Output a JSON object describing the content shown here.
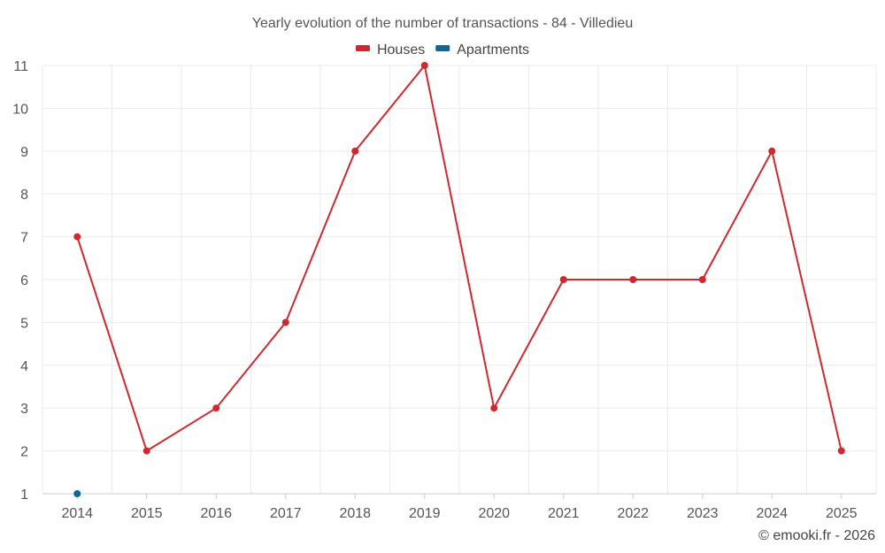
{
  "chart_data": {
    "type": "line",
    "title": "Yearly evolution of the number of transactions - 84 - Villedieu",
    "xlabel": "",
    "ylabel": "",
    "categories": [
      "2014",
      "2015",
      "2016",
      "2017",
      "2018",
      "2019",
      "2020",
      "2021",
      "2022",
      "2023",
      "2024",
      "2025"
    ],
    "ylim": [
      1,
      11
    ],
    "yticks": [
      1,
      2,
      3,
      4,
      5,
      6,
      7,
      8,
      9,
      10,
      11
    ],
    "grid": true,
    "legend_position": "top-center",
    "series": [
      {
        "name": "Houses",
        "color": "#d0282e",
        "values": [
          7,
          2,
          3,
          5,
          9,
          11,
          3,
          6,
          6,
          6,
          9,
          2
        ]
      },
      {
        "name": "Apartments",
        "color": "#0e6699",
        "values": [
          1,
          null,
          null,
          null,
          null,
          null,
          null,
          null,
          null,
          null,
          null,
          null
        ]
      }
    ]
  },
  "credit": "© emooki.fr - 2026"
}
